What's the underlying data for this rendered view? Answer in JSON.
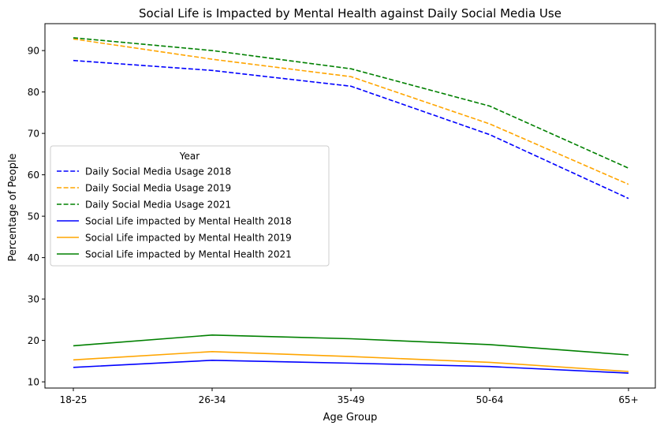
{
  "chart_data": {
    "type": "line",
    "title": "Social Life is Impacted by Mental Health against Daily Social Media Use",
    "xlabel": "Age Group",
    "ylabel": "Percentage of People",
    "categories": [
      "18-25",
      "26-34",
      "35-49",
      "50-64",
      "65+"
    ],
    "ylim": [
      8.5,
      96.5
    ],
    "yticks": [
      10,
      20,
      30,
      40,
      50,
      60,
      70,
      80,
      90
    ],
    "grid": false,
    "legend": {
      "title": "Year",
      "placement": "center-left"
    },
    "series": [
      {
        "name": "Daily Social Media Usage 2018",
        "style": "dashed",
        "color": "#0000ff",
        "values": [
          87.6,
          85.2,
          81.4,
          69.7,
          54.3
        ]
      },
      {
        "name": "Daily Social Media Usage 2019",
        "style": "dashed",
        "color": "#ffa500",
        "values": [
          92.8,
          87.9,
          83.7,
          72.3,
          57.7
        ]
      },
      {
        "name": "Daily Social Media Usage 2021",
        "style": "dashed",
        "color": "#008000",
        "values": [
          93.1,
          90.0,
          85.6,
          76.6,
          61.6
        ]
      },
      {
        "name": "Social Life impacted by Mental Health 2018",
        "style": "solid",
        "color": "#0000ff",
        "values": [
          13.5,
          15.2,
          14.5,
          13.7,
          12.1
        ]
      },
      {
        "name": "Social Life impacted by Mental Health 2019",
        "style": "solid",
        "color": "#ffa500",
        "values": [
          15.3,
          17.3,
          16.1,
          14.7,
          12.5
        ]
      },
      {
        "name": "Social Life impacted by Mental Health 2021",
        "style": "solid",
        "color": "#008000",
        "values": [
          18.7,
          21.3,
          20.4,
          19.0,
          16.5
        ]
      }
    ]
  }
}
